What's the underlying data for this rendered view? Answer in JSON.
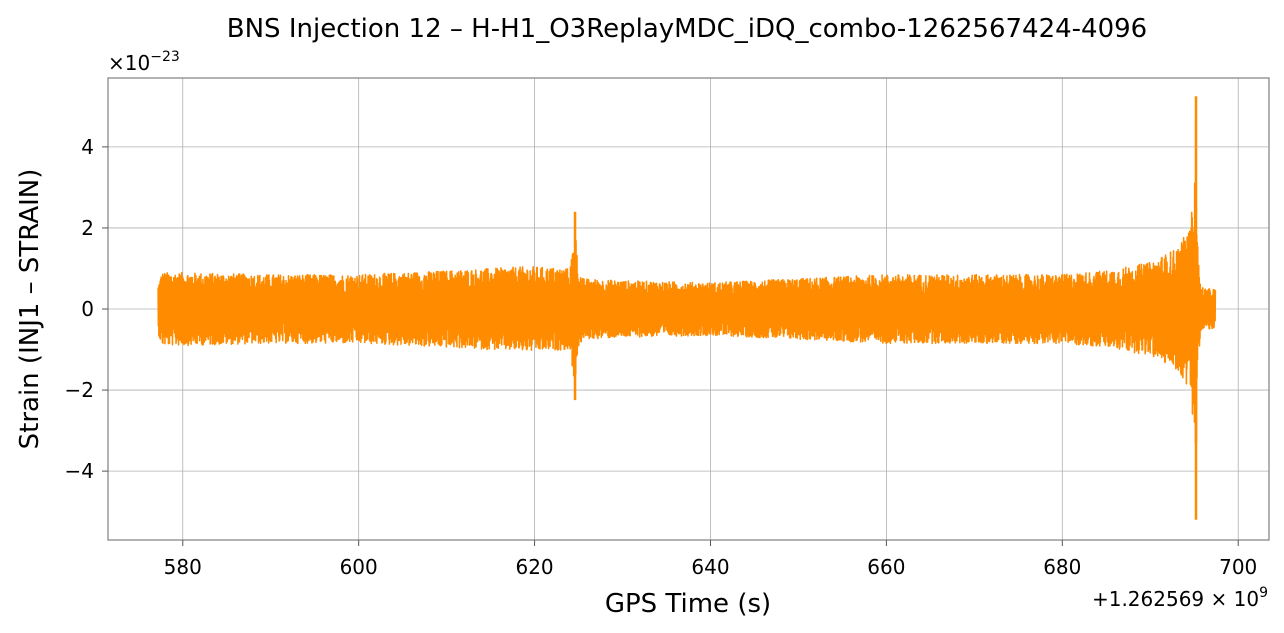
{
  "chart_data": {
    "type": "line",
    "title": "BNS Injection 12 – H-H1_O3ReplayMDC_iDQ_combo-1262567424-4096",
    "xlabel": "GPS Time (s)",
    "ylabel": "Strain (INJ1 – STRAIN)",
    "y_multiplier_base": "×10",
    "y_multiplier_exp": "−23",
    "x_offset_text": "+1.262569 × 10",
    "x_offset_exp": "9",
    "xlim": [
      571.5,
      703.5
    ],
    "ylim": [
      -5.7,
      5.7
    ],
    "xticks": [
      580,
      600,
      620,
      640,
      660,
      680,
      700
    ],
    "xtick_labels": [
      "580",
      "600",
      "620",
      "640",
      "660",
      "680",
      "700"
    ],
    "yticks": [
      -4,
      -2,
      0,
      2,
      4
    ],
    "ytick_labels": [
      "−4",
      "−2",
      "0",
      "2",
      "4"
    ],
    "grid": true,
    "line_color": "#ff8c00",
    "series": [
      {
        "x_start": 577.2,
        "x_end": 697.4,
        "envelope_x": [
          577.2,
          577.6,
          580,
          590,
          600,
          610,
          619.5,
          624.0,
          624.4,
          624.6,
          624.9,
          625.5,
          630,
          640,
          650,
          660,
          670,
          680,
          685,
          690,
          693,
          694.5,
          695.0,
          695.2,
          695.4,
          695.7,
          696.2,
          697.4
        ],
        "envelope_y": [
          0.6,
          0.9,
          0.9,
          0.85,
          0.85,
          0.95,
          1.05,
          1.0,
          1.6,
          2.4,
          1.0,
          0.75,
          0.7,
          0.65,
          0.75,
          0.85,
          0.85,
          0.85,
          0.95,
          1.15,
          1.5,
          2.0,
          3.0,
          5.25,
          1.5,
          0.6,
          0.5,
          0.5
        ],
        "envelope_y_neg": [
          -0.6,
          -0.9,
          -0.9,
          -0.85,
          -0.85,
          -0.95,
          -1.05,
          -1.0,
          -1.6,
          -2.25,
          -1.0,
          -0.75,
          -0.7,
          -0.65,
          -0.75,
          -0.85,
          -0.85,
          -0.85,
          -0.95,
          -1.15,
          -1.5,
          -2.0,
          -3.0,
          -5.2,
          -1.5,
          -0.6,
          -0.5,
          -0.5
        ]
      }
    ]
  }
}
